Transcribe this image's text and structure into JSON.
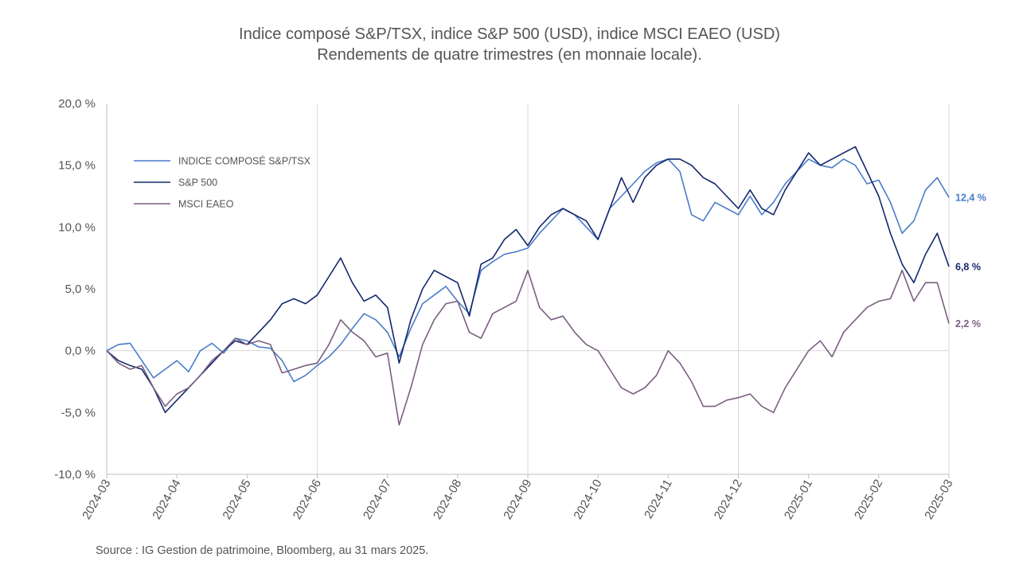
{
  "title_line1": "Indice composé S&P/TSX, indice S&P 500 (USD), indice MSCI EAEO (USD)",
  "title_line2": "Rendements de quatre trimestres (en monnaie locale).",
  "source": "Source : IG Gestion de patrimoine, Bloomberg, au 31 mars 2025.",
  "chart_data": {
    "type": "line",
    "title": "Indice composé S&P/TSX, indice S&P 500 (USD), indice MSCI EAEO (USD)",
    "subtitle": "Rendements de quatre trimestres (en monnaie locale).",
    "xlabel": "",
    "ylabel": "",
    "ylim": [
      -10,
      20
    ],
    "yticks": [
      -10,
      -5,
      0,
      5,
      10,
      15,
      20
    ],
    "ytick_labels": [
      "-10,0 %",
      "-5,0 %",
      "0,0 %",
      "5,0 %",
      "10,0 %",
      "15,0 %",
      "20,0 %"
    ],
    "x_ticks": [
      "2024-03",
      "2024-04",
      "2024-05",
      "2024-06",
      "2024-07",
      "2024-08",
      "2024-09",
      "2024-10",
      "2024-11",
      "2024-12",
      "2025-01",
      "2025-02",
      "2025-03"
    ],
    "grid": "vertical",
    "legend_position": "top-left",
    "series": [
      {
        "name": "INDICE COMPOSÉ S&P/TSX",
        "color": "#4a7cc9",
        "end_label": "12,4 %",
        "points": [
          [
            "2024-03",
            0.0
          ],
          [
            "2024-03-05",
            0.5
          ],
          [
            "2024-03-10",
            0.6
          ],
          [
            "2024-03-15",
            -0.8
          ],
          [
            "2024-03-20",
            -2.2
          ],
          [
            "2024-03-25",
            -1.5
          ],
          [
            "2024-04",
            -0.8
          ],
          [
            "2024-04-05",
            -1.7
          ],
          [
            "2024-04-10",
            0.0
          ],
          [
            "2024-04-15",
            0.6
          ],
          [
            "2024-04-20",
            -0.2
          ],
          [
            "2024-04-25",
            1.0
          ],
          [
            "2024-05",
            0.8
          ],
          [
            "2024-05-05",
            0.3
          ],
          [
            "2024-05-10",
            0.2
          ],
          [
            "2024-05-15",
            -0.8
          ],
          [
            "2024-05-20",
            -2.5
          ],
          [
            "2024-05-25",
            -2.0
          ],
          [
            "2024-06",
            -1.2
          ],
          [
            "2024-06-05",
            -0.5
          ],
          [
            "2024-06-10",
            0.5
          ],
          [
            "2024-06-15",
            1.8
          ],
          [
            "2024-06-20",
            3.0
          ],
          [
            "2024-06-25",
            2.5
          ],
          [
            "2024-07",
            1.5
          ],
          [
            "2024-07-05",
            -0.5
          ],
          [
            "2024-07-10",
            1.8
          ],
          [
            "2024-07-15",
            3.8
          ],
          [
            "2024-07-20",
            4.5
          ],
          [
            "2024-07-25",
            5.2
          ],
          [
            "2024-08",
            4.0
          ],
          [
            "2024-08-05",
            3.0
          ],
          [
            "2024-08-10",
            6.5
          ],
          [
            "2024-08-15",
            7.2
          ],
          [
            "2024-08-20",
            7.8
          ],
          [
            "2024-08-25",
            8.0
          ],
          [
            "2024-09",
            8.3
          ],
          [
            "2024-09-05",
            9.5
          ],
          [
            "2024-09-10",
            10.5
          ],
          [
            "2024-09-15",
            11.5
          ],
          [
            "2024-09-20",
            11.0
          ],
          [
            "2024-09-25",
            10.0
          ],
          [
            "2024-10",
            9.0
          ],
          [
            "2024-10-05",
            11.5
          ],
          [
            "2024-10-10",
            12.5
          ],
          [
            "2024-10-15",
            13.5
          ],
          [
            "2024-10-20",
            14.5
          ],
          [
            "2024-10-25",
            15.2
          ],
          [
            "2024-11",
            15.5
          ],
          [
            "2024-11-05",
            14.5
          ],
          [
            "2024-11-10",
            11.0
          ],
          [
            "2024-11-15",
            10.5
          ],
          [
            "2024-11-20",
            12.0
          ],
          [
            "2024-11-25",
            11.5
          ],
          [
            "2024-12",
            11.0
          ],
          [
            "2024-12-05",
            12.5
          ],
          [
            "2024-12-10",
            11.0
          ],
          [
            "2024-12-15",
            12.0
          ],
          [
            "2024-12-20",
            13.5
          ],
          [
            "2024-12-25",
            14.5
          ],
          [
            "2025-01",
            15.5
          ],
          [
            "2025-01-05",
            15.0
          ],
          [
            "2025-01-10",
            14.8
          ],
          [
            "2025-01-15",
            15.5
          ],
          [
            "2025-01-20",
            15.0
          ],
          [
            "2025-01-25",
            13.5
          ],
          [
            "2025-02",
            13.8
          ],
          [
            "2025-02-05",
            12.0
          ],
          [
            "2025-02-10",
            9.5
          ],
          [
            "2025-02-15",
            10.5
          ],
          [
            "2025-02-20",
            13.0
          ],
          [
            "2025-02-25",
            14.0
          ],
          [
            "2025-03",
            12.4
          ]
        ]
      },
      {
        "name": "S&P 500",
        "color": "#14286e",
        "end_label": "6,8 %",
        "points": [
          [
            "2024-03",
            0.0
          ],
          [
            "2024-03-05",
            -0.8
          ],
          [
            "2024-03-10",
            -1.2
          ],
          [
            "2024-03-15",
            -1.5
          ],
          [
            "2024-03-20",
            -3.0
          ],
          [
            "2024-03-25",
            -5.0
          ],
          [
            "2024-04",
            -4.0
          ],
          [
            "2024-04-05",
            -3.0
          ],
          [
            "2024-04-10",
            -2.0
          ],
          [
            "2024-04-15",
            -1.0
          ],
          [
            "2024-04-20",
            0.0
          ],
          [
            "2024-04-25",
            0.8
          ],
          [
            "2024-05",
            0.5
          ],
          [
            "2024-05-05",
            1.5
          ],
          [
            "2024-05-10",
            2.5
          ],
          [
            "2024-05-15",
            3.8
          ],
          [
            "2024-05-20",
            4.2
          ],
          [
            "2024-05-25",
            3.8
          ],
          [
            "2024-06",
            4.5
          ],
          [
            "2024-06-05",
            6.0
          ],
          [
            "2024-06-10",
            7.5
          ],
          [
            "2024-06-15",
            5.5
          ],
          [
            "2024-06-20",
            4.0
          ],
          [
            "2024-06-25",
            4.5
          ],
          [
            "2024-07",
            3.5
          ],
          [
            "2024-07-05",
            -1.0
          ],
          [
            "2024-07-10",
            2.5
          ],
          [
            "2024-07-15",
            5.0
          ],
          [
            "2024-07-20",
            6.5
          ],
          [
            "2024-07-25",
            6.0
          ],
          [
            "2024-08",
            5.5
          ],
          [
            "2024-08-05",
            2.8
          ],
          [
            "2024-08-10",
            7.0
          ],
          [
            "2024-08-15",
            7.5
          ],
          [
            "2024-08-20",
            9.0
          ],
          [
            "2024-08-25",
            9.8
          ],
          [
            "2024-09",
            8.5
          ],
          [
            "2024-09-05",
            10.0
          ],
          [
            "2024-09-10",
            11.0
          ],
          [
            "2024-09-15",
            11.5
          ],
          [
            "2024-09-20",
            11.0
          ],
          [
            "2024-09-25",
            10.5
          ],
          [
            "2024-10",
            9.0
          ],
          [
            "2024-10-05",
            11.5
          ],
          [
            "2024-10-10",
            14.0
          ],
          [
            "2024-10-15",
            12.0
          ],
          [
            "2024-10-20",
            14.0
          ],
          [
            "2024-10-25",
            15.0
          ],
          [
            "2024-11",
            15.5
          ],
          [
            "2024-11-05",
            15.5
          ],
          [
            "2024-11-10",
            15.0
          ],
          [
            "2024-11-15",
            14.0
          ],
          [
            "2024-11-20",
            13.5
          ],
          [
            "2024-11-25",
            12.5
          ],
          [
            "2024-12",
            11.5
          ],
          [
            "2024-12-05",
            13.0
          ],
          [
            "2024-12-10",
            11.5
          ],
          [
            "2024-12-15",
            11.0
          ],
          [
            "2024-12-20",
            13.0
          ],
          [
            "2024-12-25",
            14.5
          ],
          [
            "2025-01",
            16.0
          ],
          [
            "2025-01-05",
            15.0
          ],
          [
            "2025-01-10",
            15.5
          ],
          [
            "2025-01-15",
            16.0
          ],
          [
            "2025-01-20",
            16.5
          ],
          [
            "2025-01-25",
            14.5
          ],
          [
            "2025-02",
            12.5
          ],
          [
            "2025-02-05",
            9.5
          ],
          [
            "2025-02-10",
            7.0
          ],
          [
            "2025-02-15",
            5.5
          ],
          [
            "2025-02-20",
            7.8
          ],
          [
            "2025-02-25",
            9.5
          ],
          [
            "2025-03",
            6.8
          ]
        ]
      },
      {
        "name": "MSCI EAEO",
        "color": "#7a5f7f",
        "end_label": "2,2 %",
        "points": [
          [
            "2024-03",
            0.0
          ],
          [
            "2024-03-05",
            -1.0
          ],
          [
            "2024-03-10",
            -1.5
          ],
          [
            "2024-03-15",
            -1.2
          ],
          [
            "2024-03-20",
            -3.0
          ],
          [
            "2024-03-25",
            -4.5
          ],
          [
            "2024-04",
            -3.5
          ],
          [
            "2024-04-05",
            -3.0
          ],
          [
            "2024-04-10",
            -2.0
          ],
          [
            "2024-04-15",
            -0.8
          ],
          [
            "2024-04-20",
            0.0
          ],
          [
            "2024-04-25",
            1.0
          ],
          [
            "2024-05",
            0.5
          ],
          [
            "2024-05-05",
            0.8
          ],
          [
            "2024-05-10",
            0.5
          ],
          [
            "2024-05-15",
            -1.8
          ],
          [
            "2024-05-20",
            -1.5
          ],
          [
            "2024-05-25",
            -1.2
          ],
          [
            "2024-06",
            -1.0
          ],
          [
            "2024-06-05",
            0.5
          ],
          [
            "2024-06-10",
            2.5
          ],
          [
            "2024-06-15",
            1.5
          ],
          [
            "2024-06-20",
            0.8
          ],
          [
            "2024-06-25",
            -0.5
          ],
          [
            "2024-07",
            -0.2
          ],
          [
            "2024-07-05",
            -6.0
          ],
          [
            "2024-07-10",
            -3.0
          ],
          [
            "2024-07-15",
            0.5
          ],
          [
            "2024-07-20",
            2.5
          ],
          [
            "2024-07-25",
            3.8
          ],
          [
            "2024-08",
            4.0
          ],
          [
            "2024-08-05",
            1.5
          ],
          [
            "2024-08-10",
            1.0
          ],
          [
            "2024-08-15",
            3.0
          ],
          [
            "2024-08-20",
            3.5
          ],
          [
            "2024-08-25",
            4.0
          ],
          [
            "2024-09",
            6.5
          ],
          [
            "2024-09-05",
            3.5
          ],
          [
            "2024-09-10",
            2.5
          ],
          [
            "2024-09-15",
            2.8
          ],
          [
            "2024-09-20",
            1.5
          ],
          [
            "2024-09-25",
            0.5
          ],
          [
            "2024-10",
            0.0
          ],
          [
            "2024-10-05",
            -1.5
          ],
          [
            "2024-10-10",
            -3.0
          ],
          [
            "2024-10-15",
            -3.5
          ],
          [
            "2024-10-20",
            -3.0
          ],
          [
            "2024-10-25",
            -2.0
          ],
          [
            "2024-11",
            0.0
          ],
          [
            "2024-11-05",
            -1.0
          ],
          [
            "2024-11-10",
            -2.5
          ],
          [
            "2024-11-15",
            -4.5
          ],
          [
            "2024-11-20",
            -4.5
          ],
          [
            "2024-11-25",
            -4.0
          ],
          [
            "2024-12",
            -3.8
          ],
          [
            "2024-12-05",
            -3.5
          ],
          [
            "2024-12-10",
            -4.5
          ],
          [
            "2024-12-15",
            -5.0
          ],
          [
            "2024-12-20",
            -3.0
          ],
          [
            "2024-12-25",
            -1.5
          ],
          [
            "2025-01",
            0.0
          ],
          [
            "2025-01-05",
            0.8
          ],
          [
            "2025-01-10",
            -0.5
          ],
          [
            "2025-01-15",
            1.5
          ],
          [
            "2025-01-20",
            2.5
          ],
          [
            "2025-01-25",
            3.5
          ],
          [
            "2025-02",
            4.0
          ],
          [
            "2025-02-05",
            4.2
          ],
          [
            "2025-02-10",
            6.5
          ],
          [
            "2025-02-15",
            4.0
          ],
          [
            "2025-02-20",
            5.5
          ],
          [
            "2025-02-25",
            5.5
          ],
          [
            "2025-03",
            2.2
          ]
        ]
      }
    ]
  }
}
